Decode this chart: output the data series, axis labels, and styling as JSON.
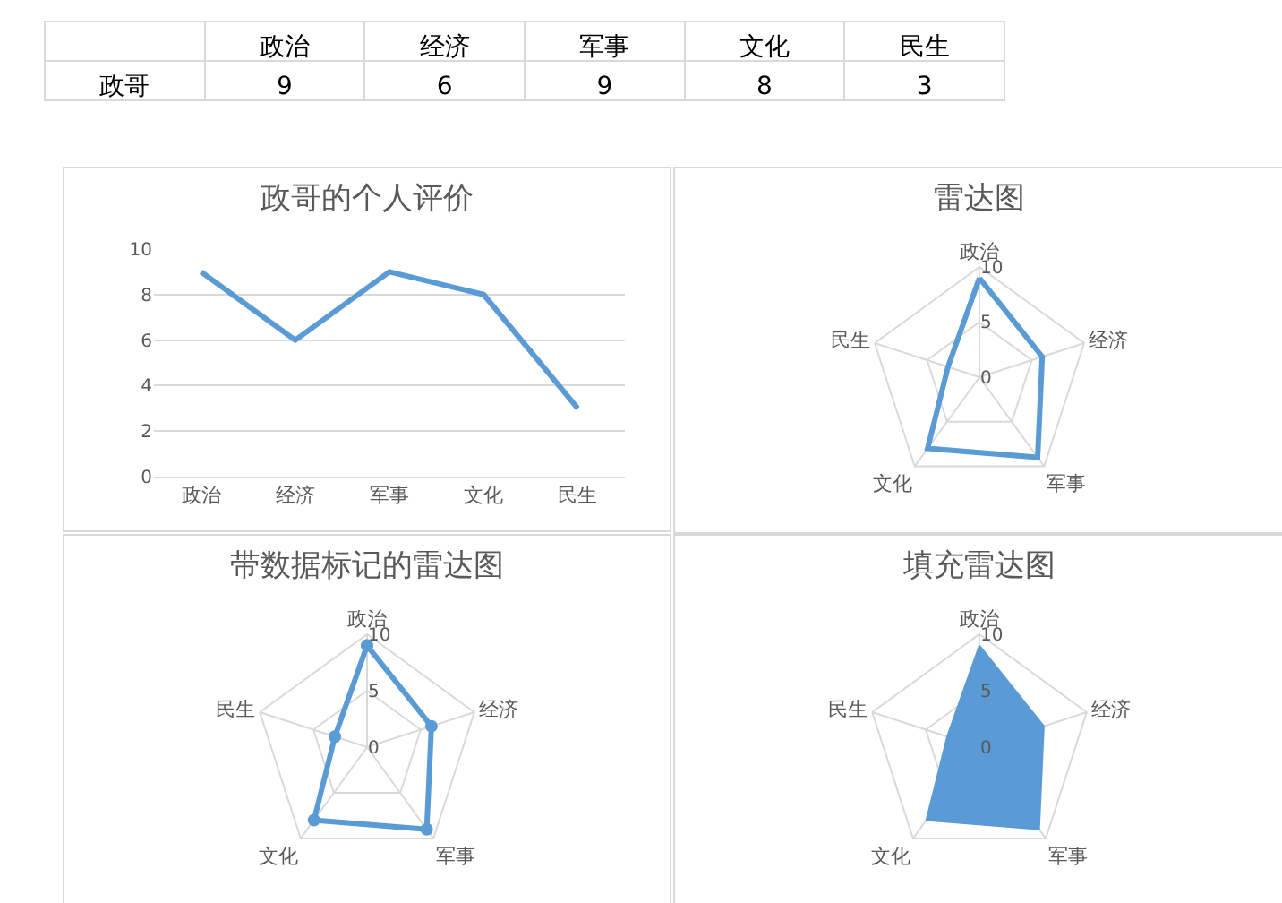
{
  "chart_data": [
    {
      "type": "other",
      "data_labels": true,
      "categories": [
        "政治",
        "经济",
        "军事",
        "文化",
        "民生"
      ],
      "series": [
        {
          "name": "政哥",
          "values": [
            9,
            6,
            9,
            8,
            3
          ]
        }
      ]
    },
    {
      "type": "line",
      "title": "政哥的个人评价",
      "categories": [
        "政治",
        "经济",
        "军事",
        "文化",
        "民生"
      ],
      "series": [
        {
          "color": "#5b9bd5",
          "values": [
            9,
            6,
            9,
            8,
            3
          ]
        }
      ],
      "ylim": [
        0,
        10
      ],
      "yticks": [
        0,
        2,
        4,
        6,
        8,
        10
      ],
      "grid": "y",
      "legend": false,
      "marker": "none"
    },
    {
      "type": "radar",
      "title": "雷达图",
      "categories": [
        "政治",
        "经济",
        "军事",
        "文化",
        "民生"
      ],
      "series": [
        {
          "color": "#5b9bd5",
          "values": [
            9,
            6,
            9,
            8,
            3
          ]
        }
      ],
      "ylim": [
        0,
        10
      ],
      "yticks": [
        0,
        5,
        10
      ],
      "grid": true,
      "legend": false,
      "marker": "none"
    },
    {
      "type": "radar",
      "title": "带数据标记的雷达图",
      "categories": [
        "政治",
        "经济",
        "军事",
        "文化",
        "民生"
      ],
      "series": [
        {
          "color": "#5b9bd5",
          "values": [
            9,
            6,
            9,
            8,
            3
          ]
        }
      ],
      "ylim": [
        0,
        10
      ],
      "yticks": [
        0,
        5,
        10
      ],
      "grid": true,
      "legend": false,
      "marker": "circle"
    },
    {
      "type": "radar",
      "title": "填充雷达图",
      "categories": [
        "政治",
        "经济",
        "军事",
        "文化",
        "民生"
      ],
      "series": [
        {
          "type": "area",
          "color": "#5b9bd5",
          "values": [
            9,
            6,
            9,
            8,
            3
          ]
        }
      ],
      "ylim": [
        0,
        10
      ],
      "yticks": [
        0,
        5,
        10
      ],
      "grid": true,
      "legend": false
    }
  ]
}
